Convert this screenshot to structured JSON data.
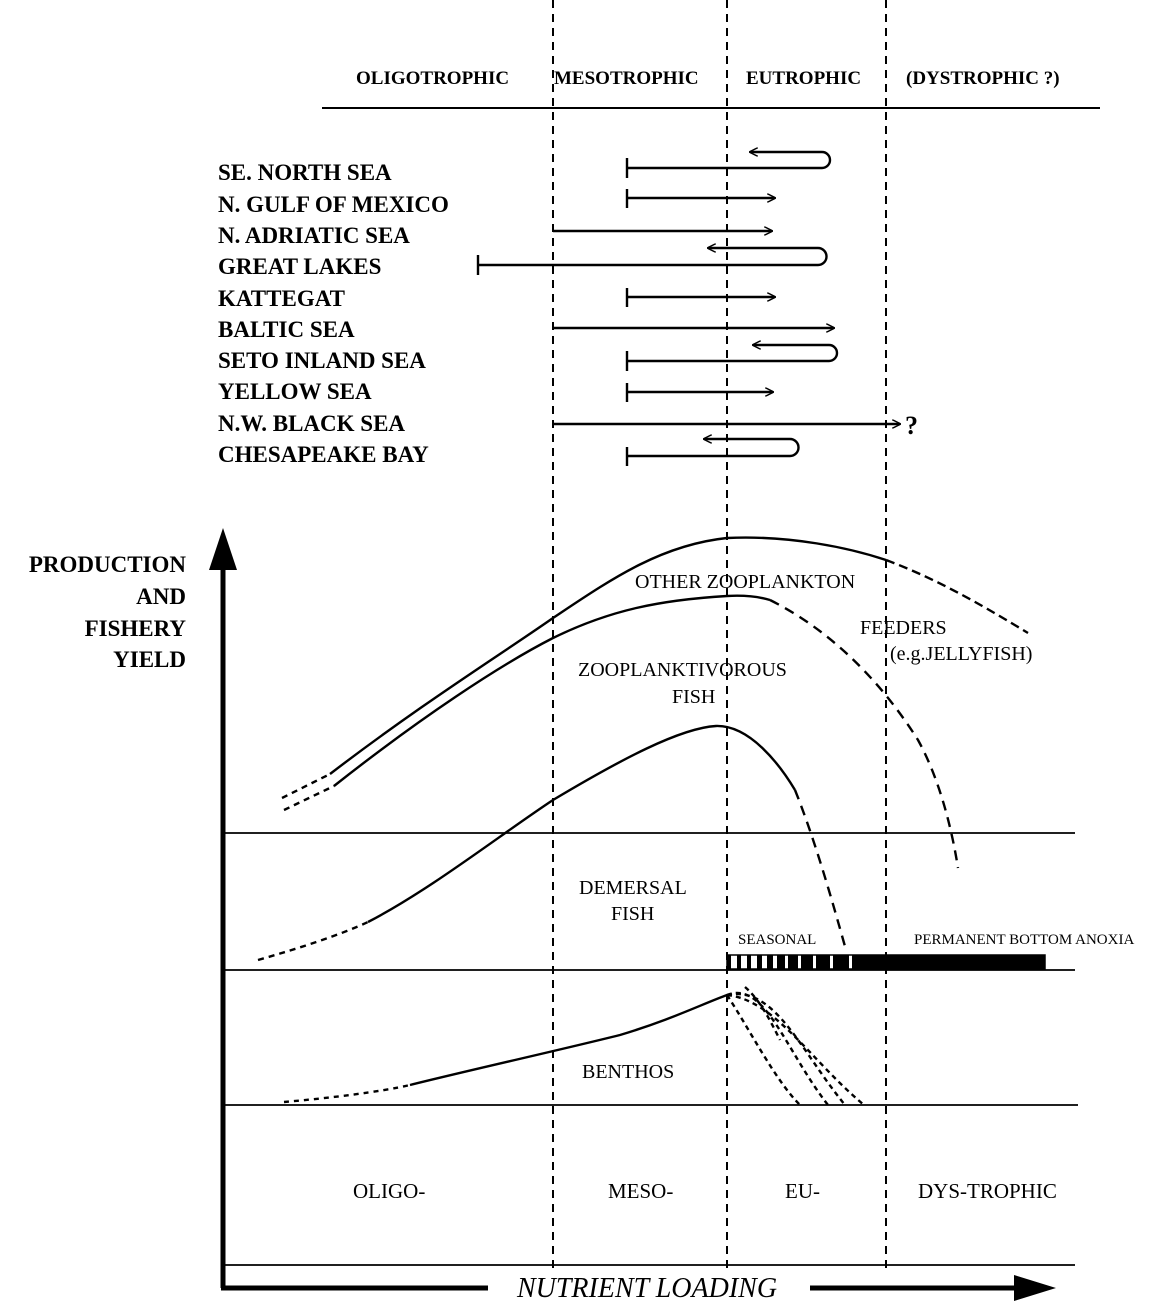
{
  "header": {
    "oligotrophic": "OLIGOTROPHIC",
    "mesotrophic": "MESOTROPHIC",
    "eutrophic": "EUTROPHIC",
    "dystrophic": "(DYSTROPHIC ?)"
  },
  "systems": [
    {
      "name": "SE. NORTH SEA",
      "trajectory": "oscillating"
    },
    {
      "name": "N. GULF OF MEXICO",
      "trajectory": "increasing"
    },
    {
      "name": "N. ADRIATIC SEA",
      "trajectory": "increasing-then-reversing"
    },
    {
      "name": "GREAT LAKES",
      "trajectory": "oscillating"
    },
    {
      "name": "KATTEGAT",
      "trajectory": "increasing"
    },
    {
      "name": "BALTIC SEA",
      "trajectory": "increasing"
    },
    {
      "name": "SETO INLAND SEA",
      "trajectory": "oscillating"
    },
    {
      "name": "YELLOW SEA",
      "trajectory": "increasing"
    },
    {
      "name": "N.W. BLACK SEA",
      "trajectory": "increasing"
    },
    {
      "name": "CHESAPEAKE BAY",
      "trajectory": "oscillating"
    }
  ],
  "question_mark": "?",
  "y_axis": {
    "line1": "PRODUCTION",
    "line2": "AND",
    "line3": "FISHERY",
    "line4": "YIELD"
  },
  "x_axis": {
    "label": "NUTRIENT LOADING"
  },
  "curves": {
    "other_zooplankton": "OTHER ZOOPLANKTON",
    "feeders": "FEEDERS",
    "jellyfish": "(e.g.JELLYFISH)",
    "zooplanktivorous": "ZOOPLANKTIVOROUS",
    "zooplanktivorous_fish": "FISH",
    "demersal": "DEMERSAL",
    "demersal_fish": "FISH",
    "benthos": "BENTHOS"
  },
  "anoxia": {
    "seasonal": "SEASONAL",
    "permanent": "PERMANENT BOTTOM ANOXIA"
  },
  "bottom_labels": {
    "oligo": "OLIGO-",
    "meso": "MESO-",
    "eu": "EU-",
    "dys": "DYS-TROPHIC"
  }
}
